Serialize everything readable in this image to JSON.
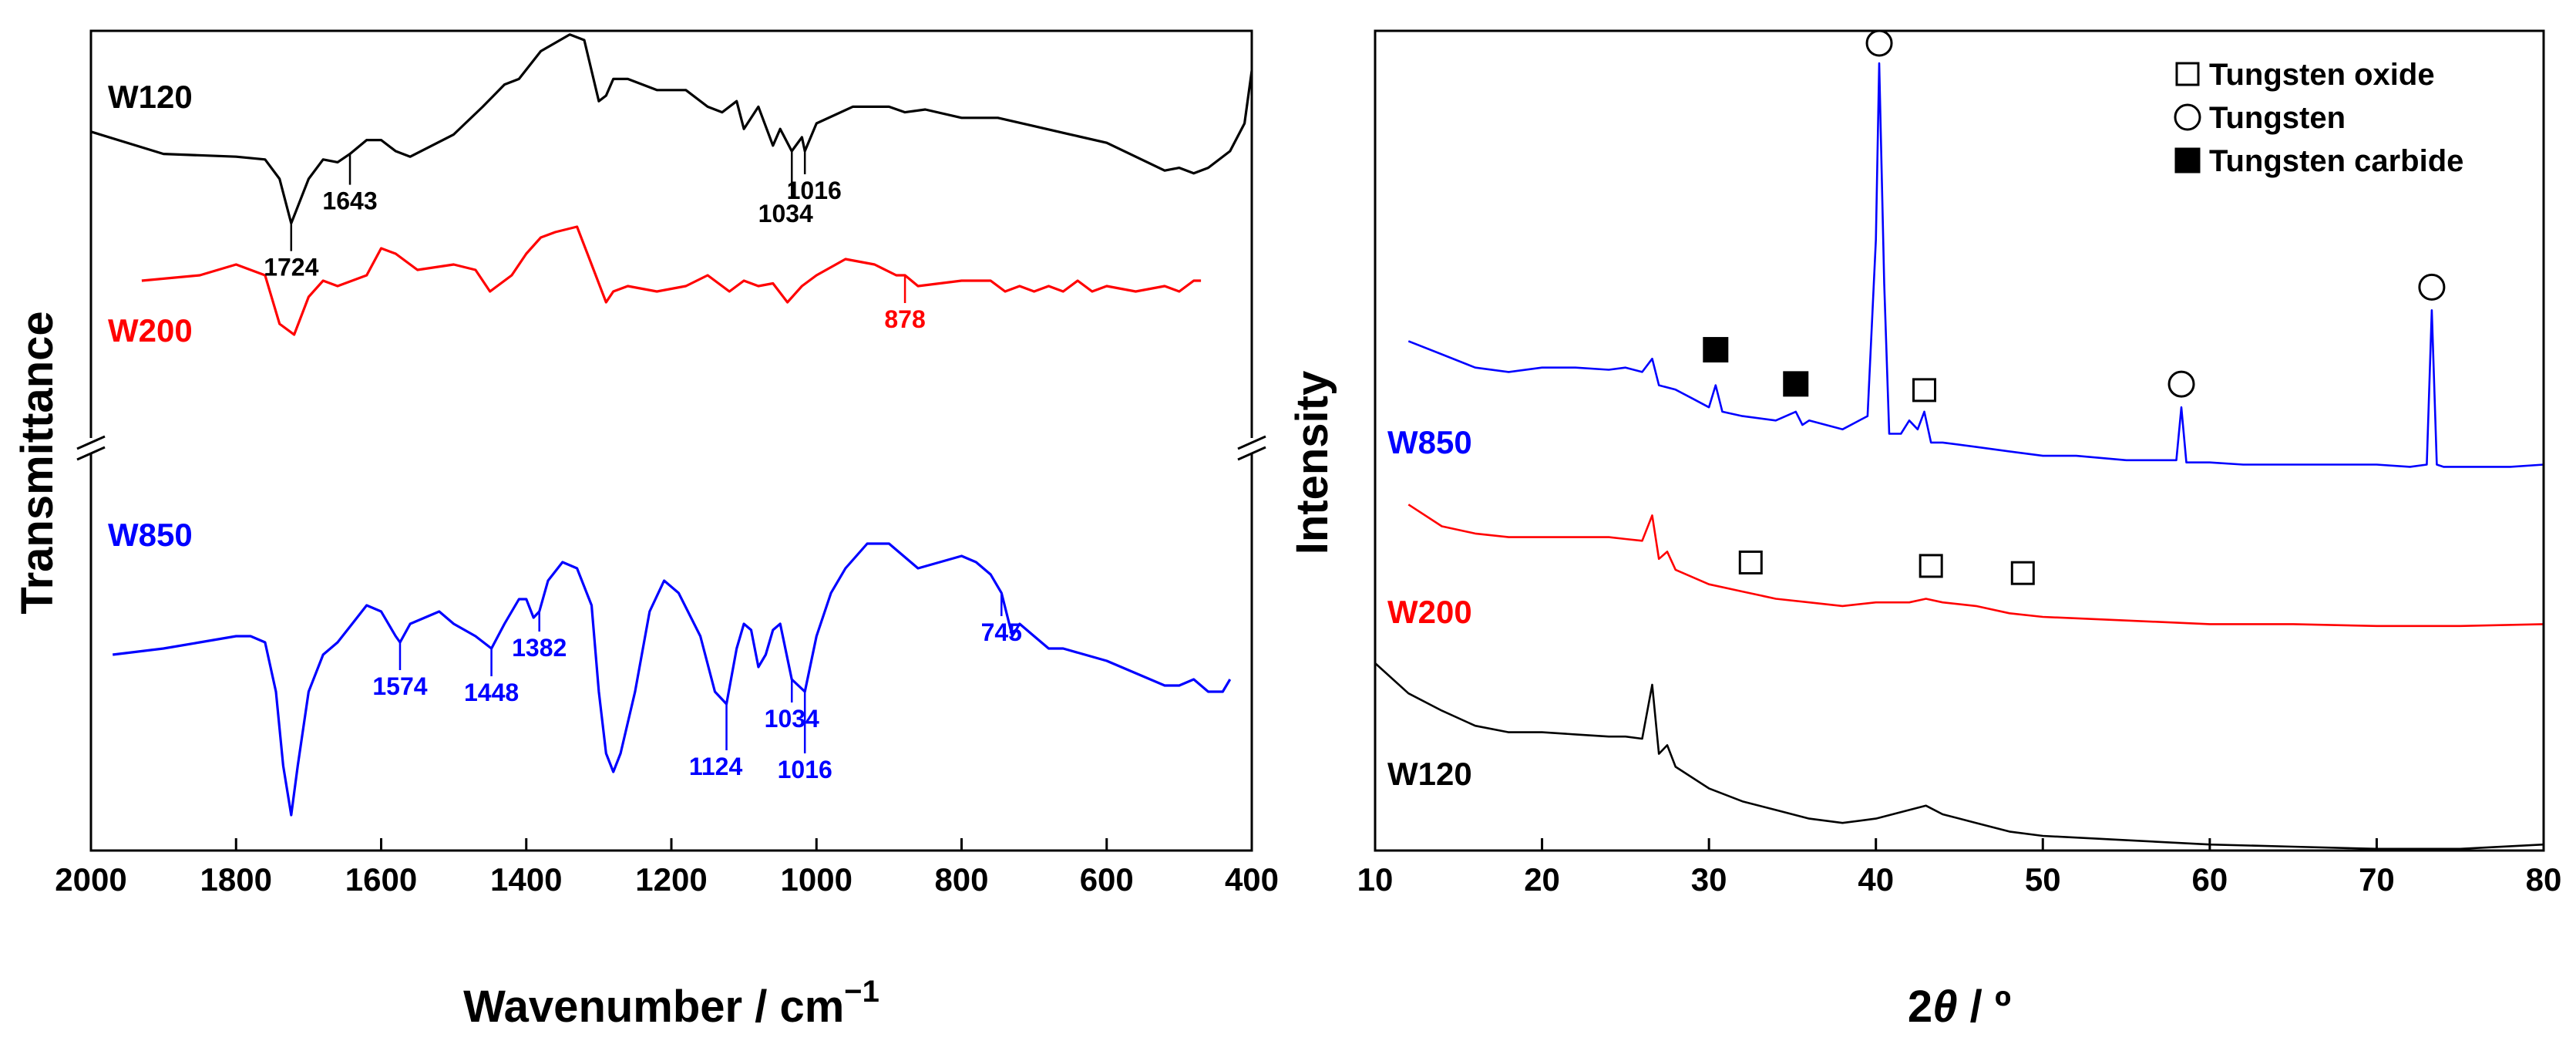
{
  "chart_data": [
    {
      "type": "line",
      "xlabel_main": "Wavenumber / cm",
      "xlabel_sup": "−1",
      "ylabel": "Transmittance",
      "xlim": [
        2000,
        400
      ],
      "x_reversed": true,
      "x_ticks": [
        2000,
        1800,
        1600,
        1400,
        1200,
        1000,
        800,
        600,
        400
      ],
      "y_axis_break": true,
      "series": [
        {
          "name": "W120",
          "color": "#000000",
          "x": [
            2000,
            1900,
            1800,
            1760,
            1740,
            1724,
            1700,
            1680,
            1660,
            1643,
            1620,
            1600,
            1580,
            1560,
            1500,
            1460,
            1430,
            1410,
            1380,
            1340,
            1320,
            1300,
            1290,
            1280,
            1260,
            1220,
            1180,
            1150,
            1130,
            1110,
            1100,
            1080,
            1060,
            1050,
            1034,
            1020,
            1016,
            1000,
            950,
            900,
            878,
            850,
            800,
            750,
            700,
            650,
            600,
            560,
            520,
            500,
            480,
            460,
            430,
            410,
            400
          ],
          "y": [
            57,
            49,
            48,
            47,
            40,
            24,
            40,
            47,
            46,
            49,
            54,
            54,
            50,
            48,
            56,
            66,
            74,
            76,
            86,
            92,
            90,
            68,
            70,
            76,
            76,
            72,
            72,
            66,
            64,
            68,
            58,
            66,
            52,
            58,
            50,
            55,
            50,
            60,
            66,
            66,
            64,
            65,
            62,
            62,
            59,
            56,
            53,
            48,
            43,
            44,
            42,
            44,
            50,
            60,
            79
          ]
        },
        {
          "name": "W200",
          "color": "#ff0000",
          "x": [
            1930,
            1850,
            1800,
            1760,
            1740,
            1720,
            1700,
            1680,
            1660,
            1620,
            1600,
            1580,
            1550,
            1500,
            1470,
            1450,
            1420,
            1400,
            1380,
            1360,
            1330,
            1310,
            1290,
            1280,
            1260,
            1220,
            1180,
            1150,
            1120,
            1100,
            1080,
            1060,
            1040,
            1020,
            1000,
            960,
            920,
            890,
            878,
            860,
            800,
            760,
            740,
            720,
            700,
            680,
            660,
            640,
            620,
            600,
            560,
            520,
            500,
            480,
            470
          ],
          "y": [
            56,
            58,
            62,
            58,
            40,
            36,
            50,
            56,
            54,
            58,
            68,
            66,
            60,
            62,
            60,
            52,
            58,
            66,
            72,
            74,
            76,
            62,
            48,
            52,
            54,
            52,
            54,
            58,
            52,
            56,
            54,
            55,
            48,
            54,
            58,
            64,
            62,
            58,
            58,
            54,
            56,
            56,
            52,
            54,
            52,
            54,
            52,
            56,
            52,
            54,
            52,
            54,
            52,
            56,
            56
          ]
        },
        {
          "name": "W850",
          "color": "#0000ff",
          "x": [
            1970,
            1900,
            1850,
            1800,
            1780,
            1760,
            1745,
            1735,
            1724,
            1715,
            1700,
            1680,
            1660,
            1640,
            1620,
            1600,
            1580,
            1574,
            1560,
            1520,
            1500,
            1470,
            1448,
            1430,
            1410,
            1400,
            1390,
            1382,
            1370,
            1350,
            1330,
            1310,
            1300,
            1290,
            1280,
            1270,
            1250,
            1230,
            1210,
            1190,
            1160,
            1140,
            1124,
            1110,
            1100,
            1090,
            1080,
            1070,
            1060,
            1050,
            1034,
            1016,
            1000,
            980,
            960,
            930,
            900,
            880,
            860,
            830,
            800,
            780,
            760,
            745,
            730,
            720,
            700,
            680,
            660,
            600,
            560,
            520,
            500,
            480,
            460,
            440,
            430
          ],
          "y": [
            52,
            54,
            56,
            58,
            58,
            56,
            40,
            16,
            0,
            16,
            40,
            52,
            56,
            62,
            68,
            66,
            58,
            56,
            62,
            66,
            62,
            58,
            54,
            62,
            70,
            70,
            64,
            66,
            76,
            82,
            80,
            68,
            40,
            20,
            14,
            20,
            40,
            66,
            76,
            72,
            58,
            40,
            36,
            54,
            62,
            60,
            48,
            52,
            60,
            62,
            44,
            40,
            58,
            72,
            80,
            88,
            88,
            84,
            80,
            82,
            84,
            82,
            78,
            72,
            58,
            62,
            58,
            54,
            54,
            50,
            46,
            42,
            42,
            44,
            40,
            40,
            44
          ]
        }
      ],
      "sample_labels": [
        "W120",
        "W200",
        "W850"
      ],
      "annotations": {
        "W120": [
          "1643",
          "1724",
          "1034",
          "1016"
        ],
        "W200": [
          "878"
        ],
        "W850": [
          "1574",
          "1448",
          "1382",
          "1124",
          "1034",
          "1016",
          "745"
        ]
      }
    },
    {
      "type": "line",
      "xlabel_italic": "θ",
      "xlabel_prefix": "2",
      "xlabel_suffix": " / º",
      "ylabel": "Intensity",
      "xlim": [
        10,
        80
      ],
      "x_ticks": [
        10,
        20,
        30,
        40,
        50,
        60,
        70,
        80
      ],
      "series": [
        {
          "name": "W850",
          "color": "#0000ff",
          "x": [
            12,
            14,
            16,
            18,
            20,
            22,
            24,
            25,
            26,
            26.6,
            27,
            28,
            29,
            30,
            30.4,
            30.8,
            32,
            34,
            35.2,
            35.6,
            36,
            38,
            39.5,
            40,
            40.2,
            40.5,
            40.8,
            41.5,
            42,
            42.5,
            42.9,
            43.3,
            44,
            46,
            48,
            50,
            52,
            55,
            58,
            58.3,
            58.6,
            60,
            62,
            65,
            68,
            70,
            72,
            73,
            73.3,
            73.6,
            74,
            76,
            78,
            80
          ],
          "y": [
            37,
            34,
            31,
            30,
            31,
            31,
            30.5,
            31,
            30,
            33,
            27,
            26,
            24,
            22,
            27,
            21,
            20,
            19,
            21,
            18,
            19,
            17,
            20,
            60,
            100,
            50,
            16,
            16,
            19,
            17,
            21,
            14,
            14,
            13,
            12,
            11,
            11,
            10,
            10,
            22,
            9.5,
            9.5,
            9,
            9,
            9,
            9,
            8.5,
            9,
            44,
            9,
            8.5,
            8.5,
            8.5,
            9
          ]
        },
        {
          "name": "W200",
          "color": "#ff0000",
          "x": [
            12,
            14,
            16,
            18,
            20,
            22,
            24,
            25,
            26,
            26.6,
            27,
            27.5,
            28,
            30,
            32,
            34,
            36,
            38,
            40,
            42,
            43,
            44,
            46,
            48,
            50,
            55,
            60,
            65,
            70,
            75,
            80
          ],
          "y": [
            51,
            45,
            43,
            42,
            42,
            42,
            42,
            41.5,
            41,
            48,
            36,
            38,
            33,
            29,
            27,
            25,
            24,
            23,
            24,
            24,
            25,
            24,
            23,
            21,
            20,
            19,
            18,
            18,
            17.5,
            17.5,
            18
          ]
        },
        {
          "name": "W120",
          "color": "#000000",
          "x": [
            10,
            12,
            14,
            16,
            18,
            20,
            22,
            24,
            25,
            26,
            26.6,
            27,
            27.5,
            28,
            30,
            32,
            34,
            36,
            38,
            40,
            42,
            43,
            44,
            46,
            48,
            50,
            55,
            60,
            65,
            70,
            75,
            80
          ],
          "y": [
            45,
            38,
            34,
            30.5,
            29,
            29,
            28.5,
            28,
            28,
            27.5,
            40,
            24,
            26,
            21,
            16,
            13,
            11,
            9,
            8,
            9,
            11,
            12,
            10,
            8,
            6,
            5,
            4,
            3,
            2.5,
            2,
            2,
            3
          ]
        }
      ],
      "sample_labels": [
        "W850",
        "W200",
        "W120"
      ],
      "legend": {
        "placement": "top-right",
        "entries": [
          "Tungsten oxide",
          "Tungsten",
          "Tungsten carbide"
        ]
      }
    }
  ]
}
